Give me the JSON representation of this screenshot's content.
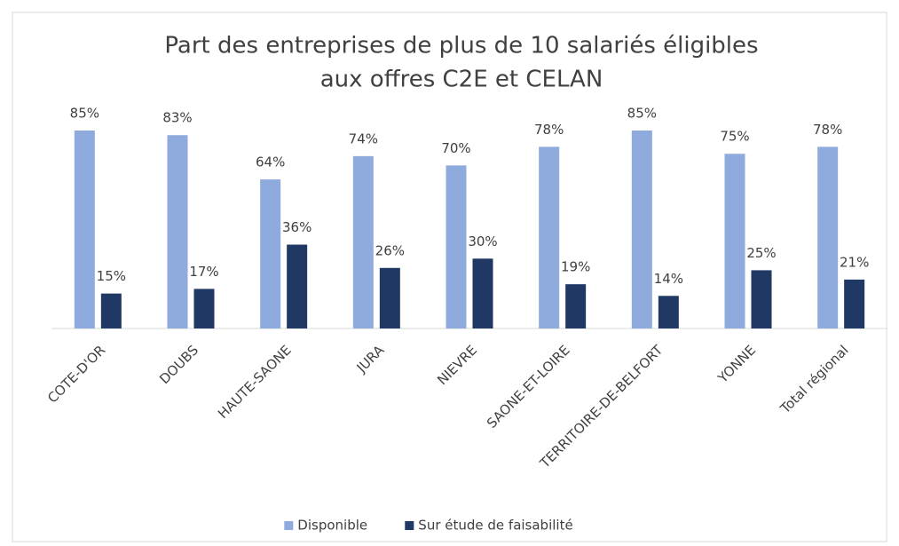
{
  "chart_data": {
    "type": "bar",
    "title": [
      "Part des entreprises de plus de 10 salariés éligibles",
      "aux offres C2E et CELAN"
    ],
    "categories": [
      "COTE-D'OR",
      "DOUBS",
      "HAUTE-SAONE",
      "JURA",
      "NIEVRE",
      "SAONE-ET-LOIRE",
      "TERRITOIRE-DE-BELFORT",
      "YONNE",
      "Total régional"
    ],
    "series": [
      {
        "name": "Disponible",
        "color": "#8faadc",
        "values": [
          85,
          83,
          64,
          74,
          70,
          78,
          85,
          75,
          78
        ],
        "value_labels": [
          "85%",
          "83%",
          "64%",
          "74%",
          "70%",
          "78%",
          "85%",
          "75%",
          "78%"
        ]
      },
      {
        "name": "Sur étude de faisabilité",
        "color": "#203864",
        "values": [
          15,
          17,
          36,
          26,
          30,
          19,
          14,
          25,
          21
        ],
        "value_labels": [
          "15%",
          "17%",
          "36%",
          "26%",
          "30%",
          "19%",
          "14%",
          "25%",
          "21%"
        ]
      }
    ],
    "legend": "bottom"
  }
}
